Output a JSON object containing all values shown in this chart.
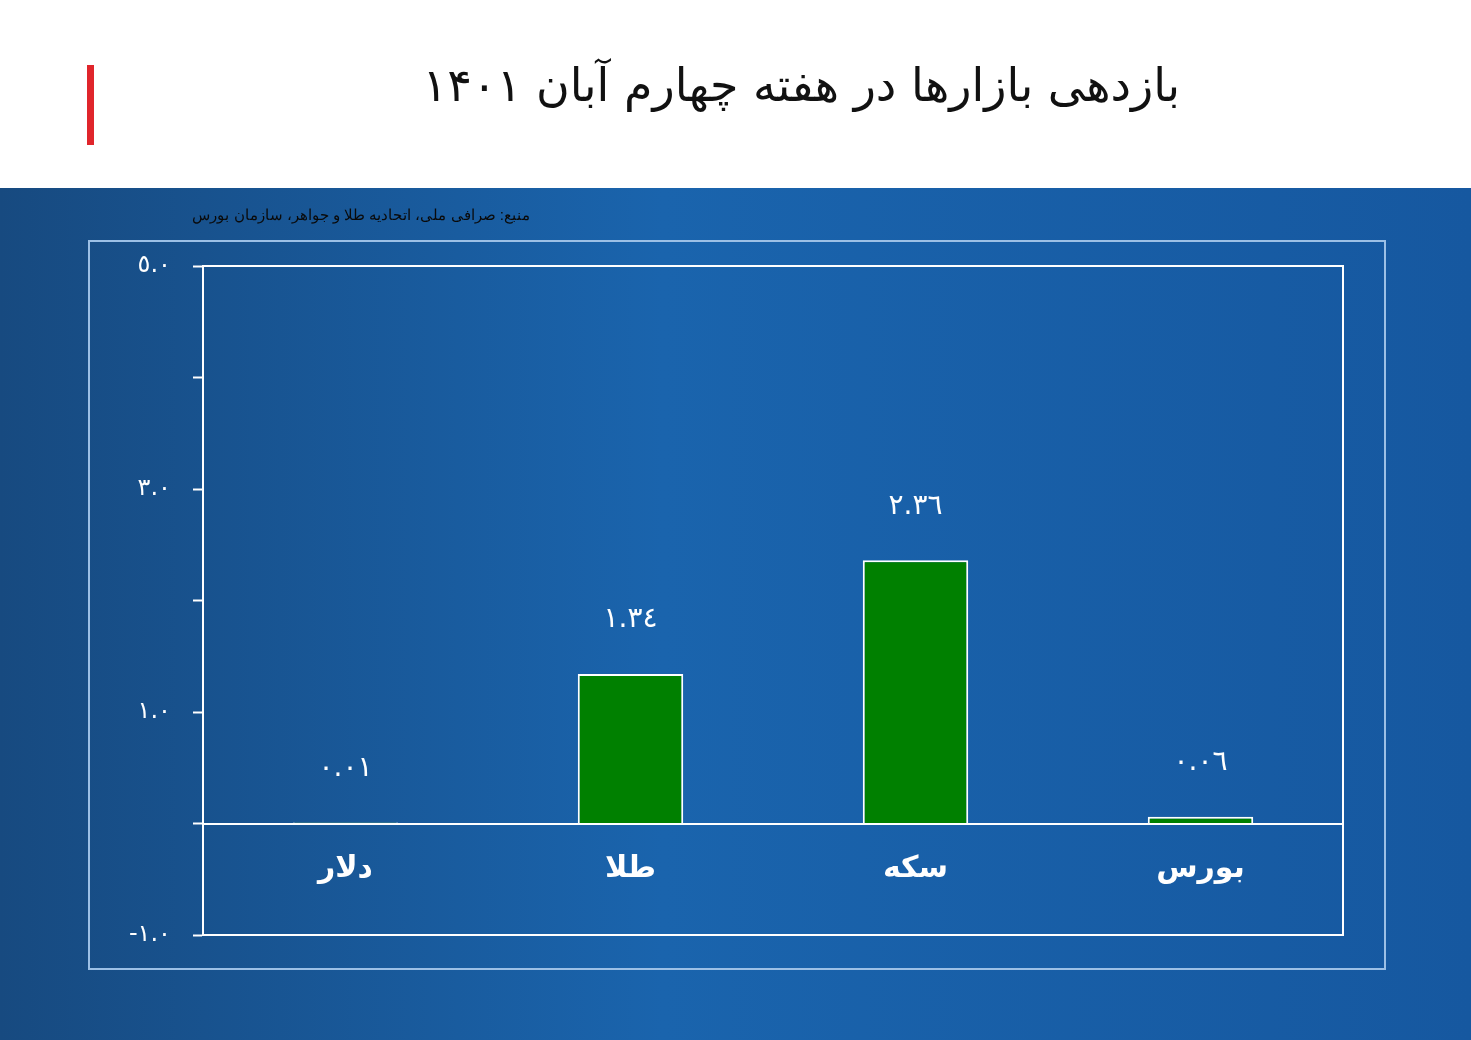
{
  "chart_data": {
    "type": "bar",
    "title": "بازدهی بازارها در هفته چهارم آبان ۱۴۰۱",
    "annotations": [
      "منبع: صرافی ملی، اتحادیه طلا و جواهر، سازمان بورس"
    ],
    "categories": [
      "دلار",
      "طلا",
      "سکه",
      "بورس"
    ],
    "values": [
      0.01,
      1.34,
      2.36,
      0.06
    ],
    "value_labels": [
      "٠.٠١",
      "١.٣٤",
      "٢.٣٦",
      "٠.٠٦"
    ],
    "color": "#008000",
    "ylim": [
      -1,
      5
    ],
    "yticks": [
      {
        "value": -1,
        "label": "-١.٠"
      },
      {
        "value": 0,
        "label": null
      },
      {
        "value": 1,
        "label": "١.٠"
      },
      {
        "value": 2,
        "label": null
      },
      {
        "value": 3,
        "label": "٣.٠"
      },
      {
        "value": 4,
        "label": null
      },
      {
        "value": 5,
        "label": "٥.٠"
      }
    ],
    "grid": false,
    "legend": false
  }
}
